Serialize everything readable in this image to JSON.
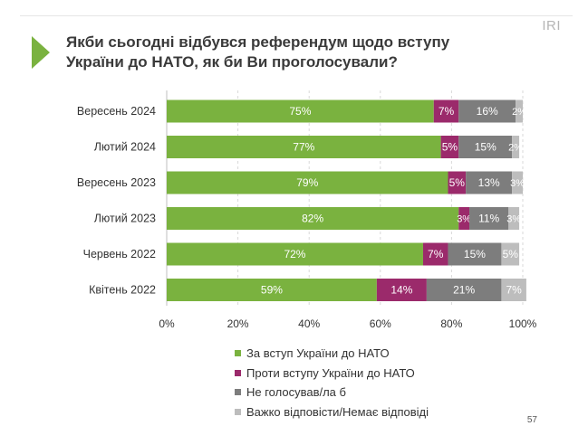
{
  "brand": "IRI",
  "title_line1": "Якби сьогодні відбувся референдум щодо вступу",
  "title_line2": "України до НАТО, як би Ви проголосували?",
  "page_number": "57",
  "colors": {
    "for_nato": "#7ab23f",
    "against_nato": "#9b2a6b",
    "not_voting": "#7d7d7d",
    "hard_to_say": "#bdbdbd",
    "arrow": "#7ab23f"
  },
  "chart_data": {
    "type": "bar",
    "orientation": "horizontal",
    "stacked": true,
    "categories": [
      "Вересень 2024",
      "Лютий 2024",
      "Вересень 2023",
      "Лютий 2023",
      "Червень 2022",
      "Квітень 2022"
    ],
    "series": [
      {
        "name": "За вступ України до НАТО",
        "color": "#7ab23f",
        "values": [
          75,
          77,
          79,
          82,
          72,
          59
        ]
      },
      {
        "name": "Проти вступу України до НАТО",
        "color": "#9b2a6b",
        "values": [
          7,
          5,
          5,
          3,
          7,
          14
        ]
      },
      {
        "name": "Не голосував/ла б",
        "color": "#7d7d7d",
        "values": [
          16,
          15,
          13,
          11,
          15,
          21
        ]
      },
      {
        "name": "Важко відповісти/Немає відповіді",
        "color": "#bdbdbd",
        "values": [
          2,
          2,
          3,
          3,
          5,
          7
        ]
      }
    ],
    "xlim": [
      0,
      100
    ],
    "xticks": [
      "0%",
      "20%",
      "40%",
      "60%",
      "80%",
      "100%"
    ],
    "grid": true,
    "legend_placement": "bottom"
  }
}
